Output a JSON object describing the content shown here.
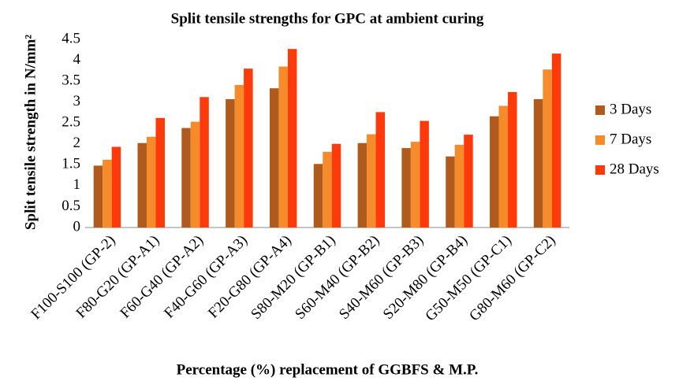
{
  "chart_data": {
    "type": "bar",
    "title": "Split tensile strengths for GPC at ambient curing",
    "x_label": "Percentage (%) replacement of GGBFS & M.P.",
    "y_label": "Split tensile strength in N/mm²",
    "categories": [
      "F100-S100 (GP-2)",
      "F80-G20 (GP-A1)",
      "F60-G40 (GP-A2)",
      "F40-G60 (GP-A3)",
      "F20-G80 (GP-A4)",
      "S80-M20 (GP-B1)",
      "S60-M40 (GP-B2)",
      "S40-M60 (GP-B3)",
      "S20-M80 (GP-B4)",
      "G50-M50 (GP-C1)",
      "G80-M60 (GP-C2)"
    ],
    "series": [
      {
        "name": "3 Days",
        "color": "#b05a1e",
        "values": [
          1.48,
          2.02,
          2.38,
          3.07,
          3.33,
          1.52,
          2.02,
          1.9,
          1.7,
          2.66,
          3.07
        ]
      },
      {
        "name": "7 Days",
        "color": "#f58b2a",
        "values": [
          1.62,
          2.17,
          2.53,
          3.41,
          3.85,
          1.81,
          2.23,
          2.05,
          1.98,
          2.91,
          3.78
        ]
      },
      {
        "name": "28 Days",
        "color": "#ff3a0a",
        "values": [
          1.93,
          2.62,
          3.12,
          3.8,
          4.27,
          2.0,
          2.76,
          2.55,
          2.22,
          3.24,
          4.16
        ]
      }
    ],
    "ylim": [
      0,
      4.5
    ],
    "yticks": [
      0,
      0.5,
      1,
      1.5,
      2,
      2.5,
      3,
      3.5,
      4,
      4.5
    ],
    "grid": false,
    "legend": "right"
  }
}
